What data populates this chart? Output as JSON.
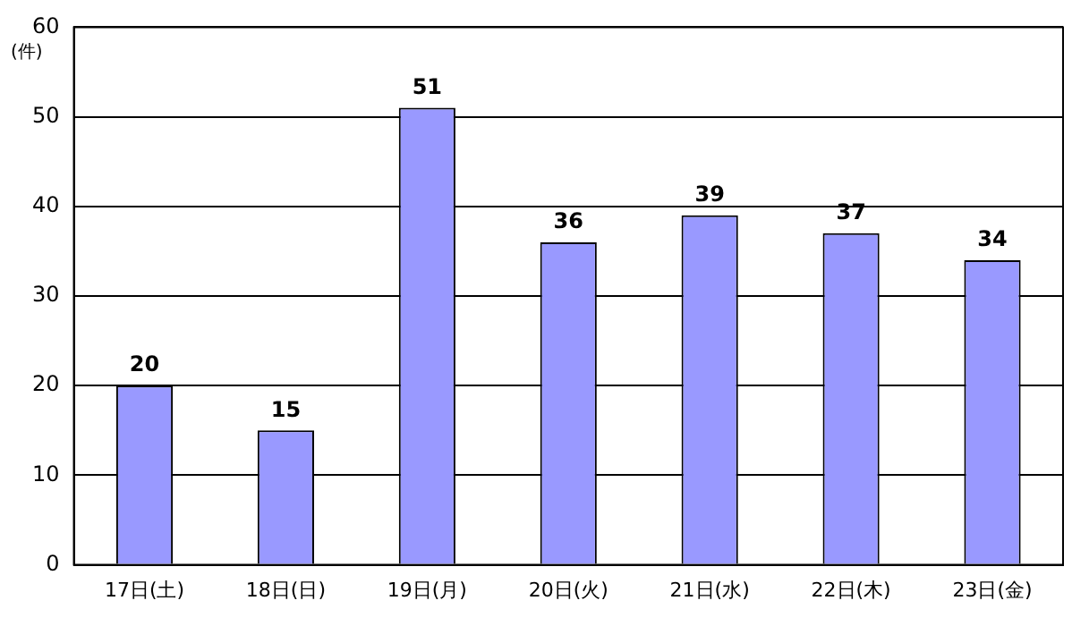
{
  "chart_data": {
    "type": "bar",
    "ylabel": "(件)",
    "categories": [
      "17日(土)",
      "18日(日)",
      "19日(月)",
      "20日(火)",
      "21日(水)",
      "22日(木)",
      "23日(金)"
    ],
    "values": [
      20,
      15,
      51,
      36,
      39,
      37,
      34
    ],
    "color": "#9999ff",
    "ylim": [
      0,
      60
    ],
    "yticks": [
      0,
      10,
      20,
      30,
      40,
      50,
      60
    ],
    "grid": "y",
    "data_labels": true,
    "legend": false
  }
}
